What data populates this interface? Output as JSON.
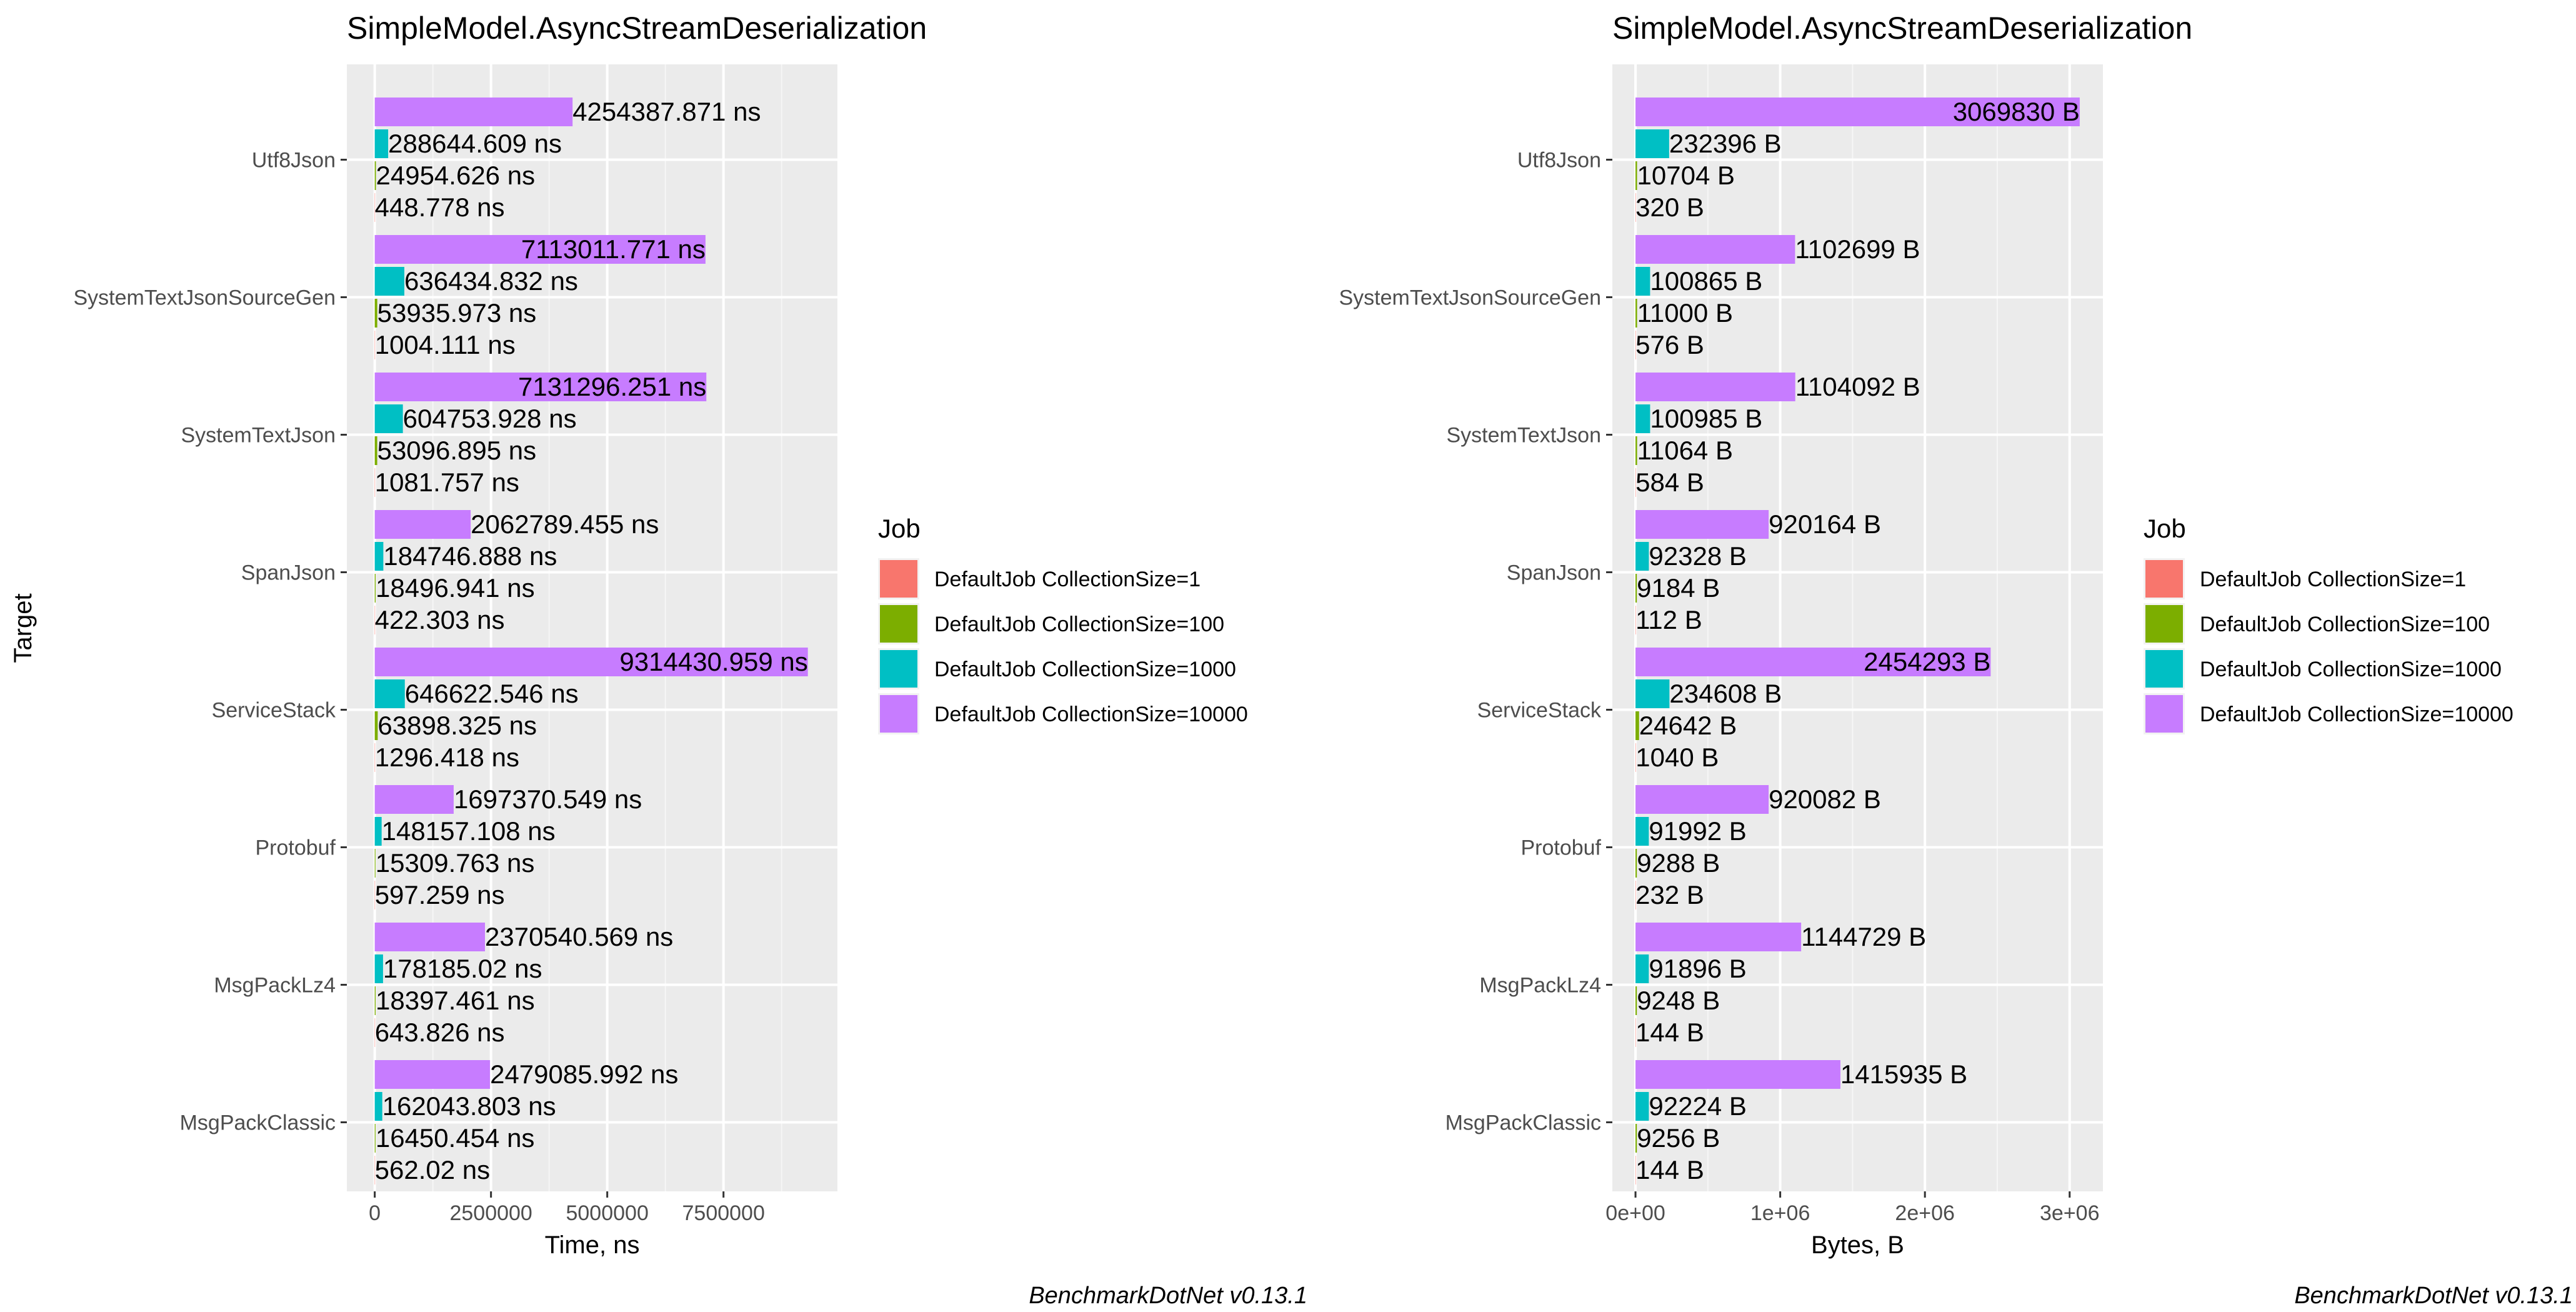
{
  "chart_data": [
    {
      "type": "bar",
      "orientation": "horizontal",
      "title": "SimpleModel.AsyncStreamDeserialization",
      "xlabel": "Time, ns",
      "ylabel": "Target",
      "caption": "BenchmarkDotNet v0.13.1",
      "xlim": [
        -600000,
        9950000
      ],
      "xticks": [
        0,
        2500000,
        5000000,
        7500000
      ],
      "xtick_labels": [
        "0",
        "2500000",
        "5000000",
        "7500000"
      ],
      "categories": [
        "Utf8Json",
        "SystemTextJsonSourceGen",
        "SystemTextJson",
        "SpanJson",
        "ServiceStack",
        "Protobuf",
        "MsgPackLz4",
        "MsgPackClassic"
      ],
      "legend": {
        "title": "Job",
        "position": "right"
      },
      "series": [
        {
          "name": "DefaultJob CollectionSize=1",
          "color": "#F8766D",
          "values": [
            448.778,
            1004.111,
            1081.757,
            422.303,
            1296.418,
            597.259,
            643.826,
            562.02
          ],
          "labels": [
            "448.778 ns",
            "1004.111 ns",
            "1081.757 ns",
            "422.303 ns",
            "1296.418 ns",
            "597.259 ns",
            "643.826 ns",
            "562.02 ns"
          ]
        },
        {
          "name": "DefaultJob CollectionSize=100",
          "color": "#7CAE00",
          "values": [
            24954.626,
            53935.973,
            53096.895,
            18496.941,
            63898.325,
            15309.763,
            18397.461,
            16450.454
          ],
          "labels": [
            "24954.626 ns",
            "53935.973 ns",
            "53096.895 ns",
            "18496.941 ns",
            "63898.325 ns",
            "15309.763 ns",
            "18397.461 ns",
            "16450.454 ns"
          ]
        },
        {
          "name": "DefaultJob CollectionSize=1000",
          "color": "#00BFC4",
          "values": [
            288644.609,
            636434.832,
            604753.928,
            184746.888,
            646622.546,
            148157.108,
            178185.02,
            162043.803
          ],
          "labels": [
            "288644.609 ns",
            "636434.832 ns",
            "604753.928 ns",
            "184746.888 ns",
            "646622.546 ns",
            "148157.108 ns",
            "178185.02 ns",
            "162043.803 ns"
          ]
        },
        {
          "name": "DefaultJob CollectionSize=10000",
          "color": "#C77CFF",
          "values": [
            4254387.871,
            7113011.771,
            7131296.251,
            2062789.455,
            9314430.959,
            1697370.549,
            2370540.569,
            2479085.992
          ],
          "labels": [
            "4254387.871 ns",
            "7113011.771 ns",
            "7131296.251 ns",
            "2062789.455 ns",
            "9314430.959 ns",
            "1697370.549 ns",
            "2370540.569 ns",
            "2479085.992 ns"
          ]
        }
      ]
    },
    {
      "type": "bar",
      "orientation": "horizontal",
      "title": "SimpleModel.AsyncStreamDeserialization",
      "xlabel": "Bytes, B",
      "ylabel": "",
      "caption": "BenchmarkDotNet v0.13.1",
      "xlim": [
        -160000,
        3230000
      ],
      "xticks": [
        0,
        1000000,
        2000000,
        3000000
      ],
      "xtick_labels": [
        "0e+00",
        "1e+06",
        "2e+06",
        "3e+06"
      ],
      "categories": [
        "Utf8Json",
        "SystemTextJsonSourceGen",
        "SystemTextJson",
        "SpanJson",
        "ServiceStack",
        "Protobuf",
        "MsgPackLz4",
        "MsgPackClassic"
      ],
      "legend": {
        "title": "Job",
        "position": "right"
      },
      "series": [
        {
          "name": "DefaultJob CollectionSize=1",
          "color": "#F8766D",
          "values": [
            320,
            576,
            584,
            112,
            1040,
            232,
            144,
            144
          ],
          "labels": [
            "320 B",
            "576 B",
            "584 B",
            "112 B",
            "1040 B",
            "232 B",
            "144 B",
            "144 B"
          ]
        },
        {
          "name": "DefaultJob CollectionSize=100",
          "color": "#7CAE00",
          "values": [
            10704,
            11000,
            11064,
            9184,
            24642,
            9288,
            9248,
            9256
          ],
          "labels": [
            "10704 B",
            "11000 B",
            "11064 B",
            "9184 B",
            "24642 B",
            "9288 B",
            "9248 B",
            "9256 B"
          ]
        },
        {
          "name": "DefaultJob CollectionSize=1000",
          "color": "#00BFC4",
          "values": [
            232396,
            100865,
            100985,
            92328,
            234608,
            91992,
            91896,
            92224
          ],
          "labels": [
            "232396 B",
            "100865 B",
            "100985 B",
            "92328 B",
            "234608 B",
            "91992 B",
            "91896 B",
            "92224 B"
          ]
        },
        {
          "name": "DefaultJob CollectionSize=10000",
          "color": "#C77CFF",
          "values": [
            3069830,
            1102699,
            1104092,
            920164,
            2454293,
            920082,
            1144729,
            1415935
          ],
          "labels": [
            "3069830 B",
            "1102699 B",
            "1104092 B",
            "920164 B",
            "2454293 B",
            "920082 B",
            "1144729 B",
            "1415935 B"
          ]
        }
      ]
    }
  ]
}
